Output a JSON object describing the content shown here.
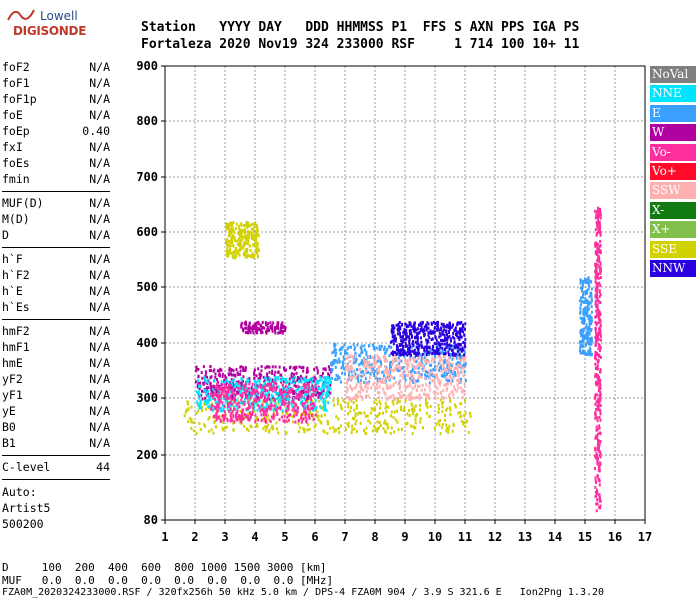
{
  "logo": {
    "line1": "Lowell",
    "line2": "DIGISONDE"
  },
  "header": {
    "labels": "Station   YYYY DAY   DDD HHMMSS P1  FFS S AXN PPS IGA PS",
    "values": "Fortaleza 2020 Nov19 324 233000 RSF     1 714 100 10+ 11"
  },
  "sidebar": {
    "group1": [
      {
        "key": "foF2",
        "value": "N/A"
      },
      {
        "key": "foF1",
        "value": "N/A"
      },
      {
        "key": "foF1p",
        "value": "N/A"
      },
      {
        "key": "foE",
        "value": "N/A"
      },
      {
        "key": "foEp",
        "value": "0.40"
      },
      {
        "key": "fxI",
        "value": "N/A"
      },
      {
        "key": "foEs",
        "value": "N/A"
      },
      {
        "key": "fmin",
        "value": "N/A"
      }
    ],
    "group2": [
      {
        "key": "MUF(D)",
        "value": "N/A"
      },
      {
        "key": "M(D)",
        "value": "N/A"
      },
      {
        "key": "D",
        "value": "N/A"
      }
    ],
    "group3": [
      {
        "key": "h`F",
        "value": "N/A"
      },
      {
        "key": "h`F2",
        "value": "N/A"
      },
      {
        "key": "h`E",
        "value": "N/A"
      },
      {
        "key": "h`Es",
        "value": "N/A"
      }
    ],
    "group4": [
      {
        "key": "hmF2",
        "value": "N/A"
      },
      {
        "key": "hmF1",
        "value": "N/A"
      },
      {
        "key": "hmE",
        "value": "N/A"
      },
      {
        "key": "yF2",
        "value": "N/A"
      },
      {
        "key": "yF1",
        "value": "N/A"
      },
      {
        "key": "yE",
        "value": "N/A"
      },
      {
        "key": "B0",
        "value": "N/A"
      },
      {
        "key": "B1",
        "value": "N/A"
      }
    ],
    "clevel": {
      "key": "C-level",
      "value": "44"
    },
    "auto": [
      "Auto:",
      "Artist5",
      "500200"
    ]
  },
  "footer": {
    "d_row": "D     100  200  400  600  800 1000 1500 3000 [km]",
    "muf_row": "MUF   0.0  0.0  0.0  0.0  0.0  0.0  0.0  0.0 [MHz]",
    "file_row": "FZA0M_2020324233000.RSF / 320fx256h 50 kHz 5.0 km / DPS-4 FZA0M 904 / 3.9 S 321.6 E   Ion2Png 1.3.20"
  },
  "chart_data": {
    "type": "scatter",
    "xlabel": "",
    "ylabel": "",
    "x_ticks": [
      "1",
      "2",
      "3",
      "4",
      "5",
      "6",
      "7",
      "8",
      "9",
      "10",
      "11",
      "12",
      "13",
      "14",
      "15",
      "16",
      "17"
    ],
    "y_ticks": [
      "80",
      "200",
      "300",
      "400",
      "500",
      "600",
      "700",
      "800",
      "900"
    ],
    "xlim": [
      1,
      17
    ],
    "ylim": [
      80,
      900
    ],
    "y_scale": "piecewise",
    "grid": "dashed",
    "legend_position": "right",
    "legend": [
      {
        "name": "NoVal",
        "color": "#7f7f7f"
      },
      {
        "name": "NNE",
        "color": "#00e5ff"
      },
      {
        "name": "E",
        "color": "#3aa0ff"
      },
      {
        "name": "W",
        "color": "#b000a0"
      },
      {
        "name": "Vo-",
        "color": "#ff2e9e"
      },
      {
        "name": "Vo+",
        "color": "#ff0a2a"
      },
      {
        "name": "SSW",
        "color": "#ffb0b0"
      },
      {
        "name": "X-",
        "color": "#127a12"
      },
      {
        "name": "X+",
        "color": "#7fbf4a"
      },
      {
        "name": "SSE",
        "color": "#d2d200"
      },
      {
        "name": "NNW",
        "color": "#2a00e0"
      }
    ],
    "echo_regions": [
      {
        "series": "SSE",
        "x": [
          1.6,
          11.2
        ],
        "y": [
          240,
          300
        ]
      },
      {
        "series": "SSE",
        "x": [
          3,
          4.1
        ],
        "y": [
          555,
          620
        ]
      },
      {
        "series": "W",
        "x": [
          2,
          6.5
        ],
        "y": [
          300,
          360
        ]
      },
      {
        "series": "NNE",
        "x": [
          2,
          6.5
        ],
        "y": [
          280,
          340
        ]
      },
      {
        "series": "Vo-",
        "x": [
          2.5,
          6
        ],
        "y": [
          260,
          330
        ]
      },
      {
        "series": "E",
        "x": [
          6.5,
          11
        ],
        "y": [
          330,
          400
        ]
      },
      {
        "series": "SSW",
        "x": [
          7,
          11
        ],
        "y": [
          300,
          380
        ]
      },
      {
        "series": "W",
        "x": [
          3.5,
          5
        ],
        "y": [
          420,
          440
        ]
      },
      {
        "series": "NNW",
        "x": [
          8.5,
          11
        ],
        "y": [
          380,
          440
        ]
      },
      {
        "series": "Vo-",
        "x": [
          15.3,
          15.5
        ],
        "y": [
          100,
          650
        ]
      },
      {
        "series": "E",
        "x": [
          14.8,
          15.2
        ],
        "y": [
          380,
          520
        ]
      }
    ]
  }
}
